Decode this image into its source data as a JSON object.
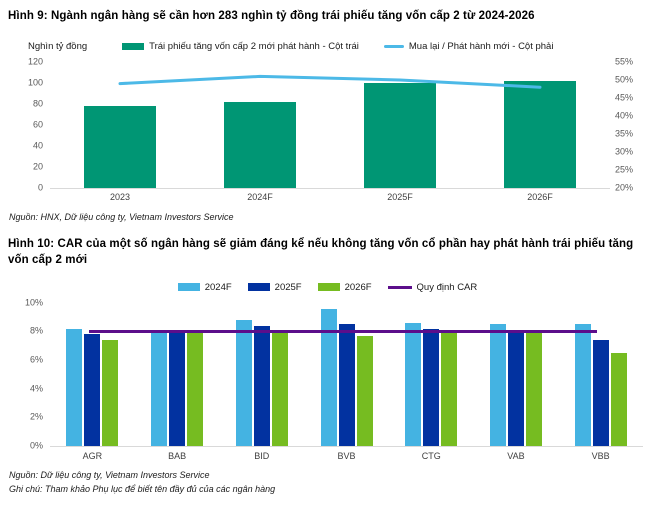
{
  "colors": {
    "teal_bar": "#009674",
    "light_blue_line": "#4CB9E7",
    "light_blue_bar": "#44B3E2",
    "dark_blue_bar": "#0232A0",
    "green_bar": "#76BC21",
    "purple_line": "#5C0E8B",
    "axis_line": "#d9d9d9",
    "tick_text": "#595959"
  },
  "chart_data": [
    {
      "type": "bar+line",
      "title": "Hình 9: Ngành ngân hàng sẽ cần hơn 283 nghìn tỷ đồng trái phiếu tăng vốn cấp 2 từ 2024-2026",
      "categories": [
        "2023",
        "2024F",
        "2025F",
        "2026F"
      ],
      "series": [
        {
          "name": "Trái phiếu tăng vốn cấp 2 mới phát hành - Cột trái",
          "type": "bar",
          "axis": "left",
          "color": "#009674",
          "values": [
            78,
            82,
            100,
            102
          ]
        },
        {
          "name": "Mua lại / Phát hành mới - Cột phải",
          "type": "line",
          "axis": "right",
          "color": "#4CB9E7",
          "values": [
            49,
            51,
            50,
            48
          ]
        }
      ],
      "left_axis": {
        "label": "Nghìn tỷ đồng",
        "min": 0,
        "max": 120,
        "step": 20,
        "ticks": [
          "120",
          "100",
          "80",
          "60",
          "40",
          "20",
          "0"
        ]
      },
      "right_axis": {
        "min": 20,
        "max": 55,
        "step": 5,
        "ticks": [
          "55%",
          "50%",
          "45%",
          "40%",
          "35%",
          "30%",
          "25%",
          "20%"
        ]
      },
      "grid": false,
      "legend_position": "top",
      "source": "Nguồn: HNX, Dữ liệu công ty, Vietnam Investors Service"
    },
    {
      "type": "grouped-bar",
      "title": "Hình 10: CAR của một số ngân hàng sẽ giảm đáng kể nếu không tăng vốn cổ phần hay phát hành trái phiếu tăng vốn cấp 2 mới",
      "categories": [
        "AGR",
        "BAB",
        "BID",
        "BVB",
        "CTG",
        "VAB",
        "VBB"
      ],
      "series": [
        {
          "name": "2024F",
          "color": "#44B3E2",
          "values": [
            8.2,
            8.1,
            8.8,
            9.6,
            8.6,
            8.5,
            8.5
          ]
        },
        {
          "name": "2025F",
          "color": "#0232A0",
          "values": [
            7.8,
            8.0,
            8.4,
            8.5,
            8.2,
            7.9,
            7.4
          ]
        },
        {
          "name": "2026F",
          "color": "#76BC21",
          "values": [
            7.4,
            7.9,
            8.0,
            7.7,
            7.9,
            8.1,
            6.5
          ]
        }
      ],
      "reference_line": {
        "name": "Quy định CAR",
        "color": "#5C0E8B",
        "value": 8
      },
      "y_axis": {
        "min": 0,
        "max": 10,
        "step": 2,
        "ticks": [
          "10%",
          "8%",
          "6%",
          "4%",
          "2%",
          "0%"
        ]
      },
      "grid": false,
      "legend_position": "top",
      "source": "Nguồn: Dữ liệu công ty, Vietnam Investors Service",
      "note": "Ghi chú: Tham khảo Phụ lục để biết tên đầy đủ của các ngân hàng"
    }
  ]
}
